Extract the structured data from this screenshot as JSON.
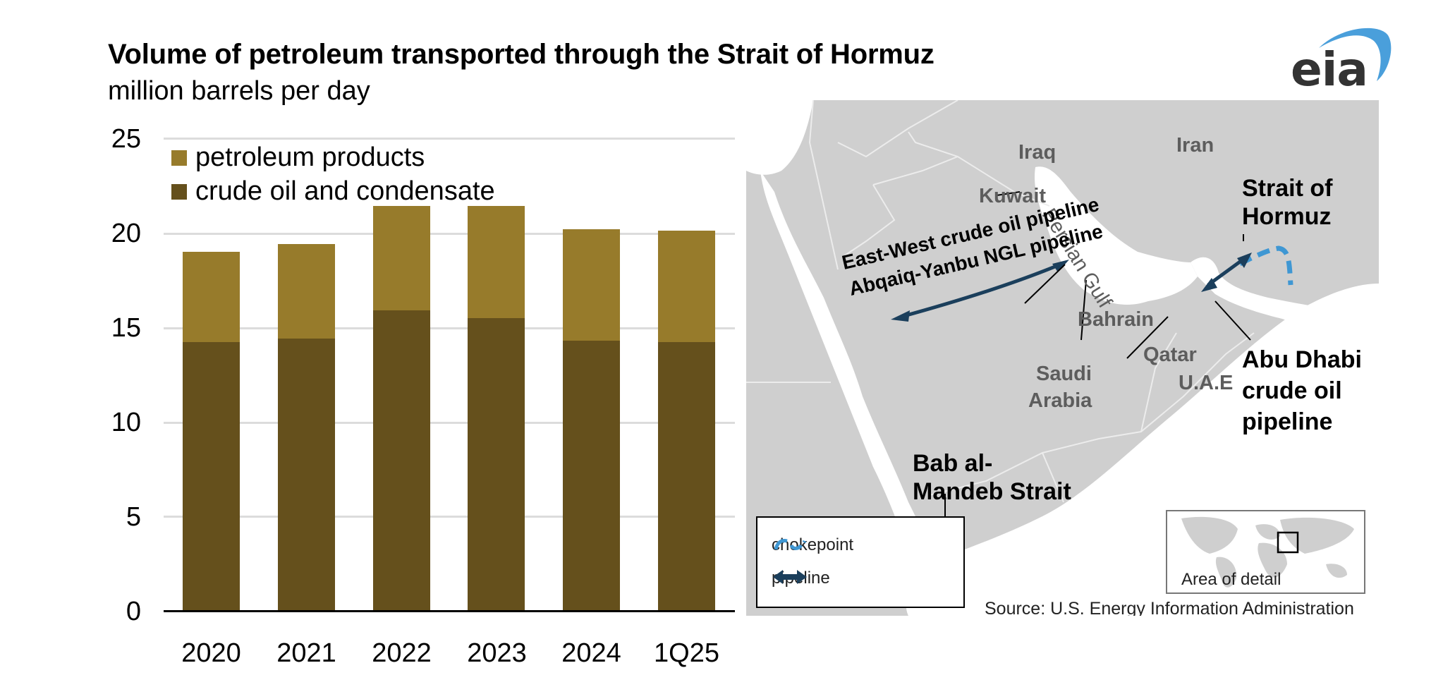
{
  "header": {
    "title": "Volume of petroleum transported through the Strait of Hormuz",
    "subtitle": "million barrels per day",
    "logo_text": "eia"
  },
  "chart_data": {
    "type": "bar",
    "stacked": true,
    "title": "Volume of petroleum transported through the Strait of Hormuz",
    "subtitle": "million barrels per day",
    "xlabel": "",
    "ylabel": "million barrels per day",
    "ylim": [
      0,
      25
    ],
    "yticks": [
      "0",
      "5",
      "10",
      "15",
      "20",
      "25"
    ],
    "grid": true,
    "legend_position": "top-left inside plot",
    "categories": [
      "2020",
      "2021",
      "2022",
      "2023",
      "2024",
      "1Q25"
    ],
    "series": [
      {
        "name": "crude oil and condensate",
        "color": "#65501c",
        "values": [
          14.2,
          14.4,
          15.9,
          15.5,
          14.3,
          14.2
        ]
      },
      {
        "name": "petroleum products",
        "color": "#977b2b",
        "values": [
          4.8,
          5.0,
          5.5,
          5.9,
          5.9,
          5.9
        ]
      }
    ],
    "totals": [
      19.0,
      19.4,
      21.4,
      21.4,
      20.2,
      20.1
    ]
  },
  "legend": {
    "items": [
      {
        "label": "petroleum products",
        "color": "#977b2b"
      },
      {
        "label": "crude oil and condensate",
        "color": "#65501c"
      }
    ]
  },
  "map": {
    "countries": [
      "Iraq",
      "Iran",
      "Kuwait",
      "Bahrain",
      "Qatar",
      "Saudi Arabia",
      "U.A.E"
    ],
    "labels": {
      "iraq": "Iraq",
      "iran": "Iran",
      "kuwait": "Kuwait",
      "bahrain": "Bahrain",
      "qatar": "Qatar",
      "saudi1": "Saudi",
      "saudi2": "Arabia",
      "uae": "U.A.E",
      "persian_gulf": "Persian Gulf",
      "strait1": "Strait of",
      "strait2": "Hormuz",
      "pipeline_ew": "East-West crude oil pipeline",
      "pipeline_ay": "Abqaiq-Yanbu NGL pipeline",
      "abu1": "Abu Dhabi",
      "abu2": "crude oil",
      "abu3": "pipeline",
      "bab1": "Bab al-",
      "bab2": "Mandeb Strait"
    },
    "legend": {
      "chokepoint": "chokepoint",
      "pipeline": "pipeline"
    },
    "inset_label": "Area of detail",
    "source": "Source: U.S. Energy Information Administration",
    "colors": {
      "land": "#cfcfcf",
      "water": "#ffffff",
      "chokepoint": "#3f97d3",
      "pipeline": "#1b3f5c"
    }
  }
}
